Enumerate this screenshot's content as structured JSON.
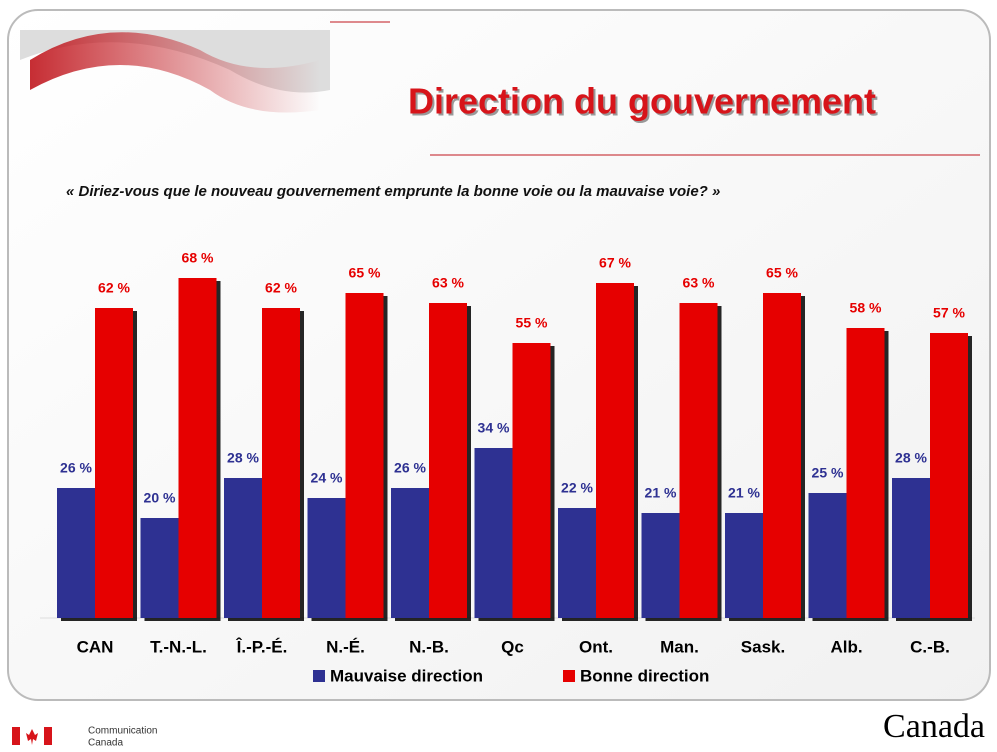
{
  "chart_data": {
    "type": "bar",
    "title": "Direction du gouvernement",
    "subtitle": "« Diriez-vous que le nouveau gouvernement emprunte la bonne voie ou la mauvaise voie? »",
    "categories": [
      "CAN",
      "T.-N.-L.",
      "Î.-P.-É.",
      "N.-É.",
      "N.-B.",
      "Qc",
      "Ont.",
      "Man.",
      "Sask.",
      "Alb.",
      "C.-B."
    ],
    "series": [
      {
        "name": "Mauvaise direction",
        "color": "#2e3192",
        "values": [
          26,
          20,
          28,
          24,
          26,
          34,
          22,
          21,
          21,
          25,
          28
        ],
        "value_labels": [
          "26 %",
          "20 %",
          "28 %",
          "24 %",
          "26 %",
          "34 %",
          "22 %",
          "21 %",
          "21 %",
          "25 %",
          "28 %"
        ]
      },
      {
        "name": "Bonne direction",
        "color": "#e60000",
        "values": [
          62,
          68,
          62,
          65,
          63,
          55,
          67,
          63,
          65,
          58,
          57
        ],
        "value_labels": [
          "62 %",
          "68 %",
          "62 %",
          "65 %",
          "63 %",
          "55 %",
          "67 %",
          "63 %",
          "65 %",
          "58 %",
          "57 %"
        ]
      }
    ],
    "legend": "bottom"
  },
  "footer": {
    "department_line1": "Communication",
    "department_line2": "Canada",
    "wordmark": "Canada"
  }
}
